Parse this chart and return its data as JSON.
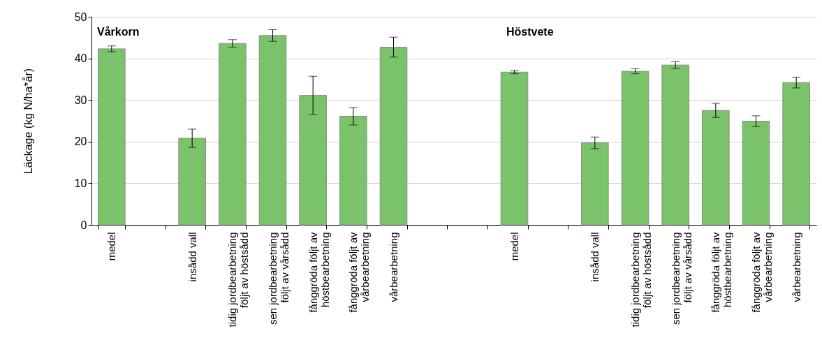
{
  "chart_data": {
    "type": "bar",
    "ylabel": "Läckage (kg N/ha*år)",
    "categories": [
      "medel",
      null,
      "insådd vall",
      "tidig jordbearbetning följt av höstsådd",
      "sen jordbearbetning följt av vårsådd",
      "fånggröda följt av höstbearbetning",
      "fånggröda följt av vårbearbetning",
      "vårbearbetning",
      null,
      null,
      "medel",
      null,
      "insådd vall",
      "tidig jordbearbetning följt av höstsådd",
      "sen jordbearbetning följt av vårsådd",
      "fånggröda följt av höstbearbetning",
      "fånggröda följt av vårbearbetning",
      "vårbearbetning"
    ],
    "values": [
      42.3,
      null,
      20.8,
      43.6,
      45.5,
      31.1,
      26.1,
      42.7,
      null,
      null,
      36.7,
      null,
      19.7,
      36.9,
      38.4,
      27.5,
      24.9,
      34.2
    ],
    "errors": [
      0.7,
      null,
      2.2,
      0.9,
      1.4,
      4.6,
      2.1,
      2.4,
      null,
      null,
      0.4,
      null,
      1.4,
      0.6,
      0.8,
      1.7,
      1.3,
      1.3
    ],
    "color": "#7ac36a",
    "ylim": [
      0,
      50
    ],
    "yticks": [
      0,
      10,
      20,
      30,
      40,
      50
    ],
    "grid": "y",
    "annotations": [
      "Vårkorn",
      "Höstvete"
    ]
  }
}
